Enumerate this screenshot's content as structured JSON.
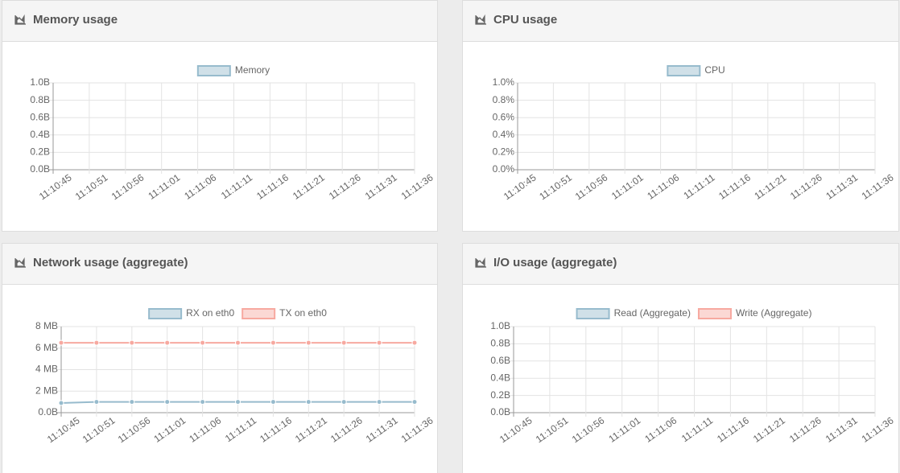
{
  "chart_data": [
    {
      "type": "line",
      "title": "Memory usage",
      "categories": [
        "11:10:45",
        "11:10:51",
        "11:10:56",
        "11:11:01",
        "11:11:06",
        "11:11:11",
        "11:11:16",
        "11:11:21",
        "11:11:26",
        "11:11:31",
        "11:11:36"
      ],
      "series": [
        {
          "name": "Memory",
          "color": "#97bbcd",
          "values": [
            null,
            null,
            null,
            null,
            null,
            null,
            null,
            null,
            null,
            null,
            null
          ]
        }
      ],
      "ylim": [
        0,
        1
      ],
      "yticks": [
        {
          "value": 0,
          "label": "0.0B"
        },
        {
          "value": 0.2,
          "label": "0.2B"
        },
        {
          "value": 0.4,
          "label": "0.4B"
        },
        {
          "value": 0.6,
          "label": "0.6B"
        },
        {
          "value": 0.8,
          "label": "0.8B"
        },
        {
          "value": 1,
          "label": "1.0B"
        }
      ],
      "grid": true
    },
    {
      "type": "line",
      "title": "CPU usage",
      "categories": [
        "11:10:45",
        "11:10:51",
        "11:10:56",
        "11:11:01",
        "11:11:06",
        "11:11:11",
        "11:11:16",
        "11:11:21",
        "11:11:26",
        "11:11:31",
        "11:11:36"
      ],
      "series": [
        {
          "name": "CPU",
          "color": "#97bbcd",
          "values": [
            null,
            null,
            null,
            null,
            null,
            null,
            null,
            null,
            null,
            null,
            null
          ]
        }
      ],
      "ylim": [
        0,
        1
      ],
      "yticks": [
        {
          "value": 0,
          "label": "0.0%"
        },
        {
          "value": 0.2,
          "label": "0.2%"
        },
        {
          "value": 0.4,
          "label": "0.4%"
        },
        {
          "value": 0.6,
          "label": "0.6%"
        },
        {
          "value": 0.8,
          "label": "0.8%"
        },
        {
          "value": 1,
          "label": "1.0%"
        }
      ],
      "grid": true
    },
    {
      "type": "line",
      "title": "Network usage (aggregate)",
      "categories": [
        "11:10:45",
        "11:10:51",
        "11:10:56",
        "11:11:01",
        "11:11:06",
        "11:11:11",
        "11:11:16",
        "11:11:21",
        "11:11:26",
        "11:11:31",
        "11:11:36"
      ],
      "series": [
        {
          "name": "RX on eth0",
          "color": "#97bbcd",
          "values": [
            0.9,
            1,
            1,
            1,
            1,
            1,
            1,
            1,
            1,
            1,
            1
          ]
        },
        {
          "name": "TX on eth0",
          "color": "#f7a9a0",
          "values": [
            6.5,
            6.5,
            6.5,
            6.5,
            6.5,
            6.5,
            6.5,
            6.5,
            6.5,
            6.5,
            6.5
          ]
        }
      ],
      "ylim": [
        0,
        8
      ],
      "yticks": [
        {
          "value": 0,
          "label": "0.0B"
        },
        {
          "value": 2,
          "label": "2 MB"
        },
        {
          "value": 4,
          "label": "4 MB"
        },
        {
          "value": 6,
          "label": "6 MB"
        },
        {
          "value": 8,
          "label": "8 MB"
        }
      ],
      "grid": true
    },
    {
      "type": "line",
      "title": "I/O usage (aggregate)",
      "categories": [
        "11:10:45",
        "11:10:51",
        "11:10:56",
        "11:11:01",
        "11:11:06",
        "11:11:11",
        "11:11:16",
        "11:11:21",
        "11:11:26",
        "11:11:31",
        "11:11:36"
      ],
      "series": [
        {
          "name": "Read (Aggregate)",
          "color": "#97bbcd",
          "values": [
            null,
            null,
            null,
            null,
            null,
            null,
            null,
            null,
            null,
            null,
            null
          ]
        },
        {
          "name": "Write (Aggregate)",
          "color": "#f7a9a0",
          "values": [
            null,
            null,
            null,
            null,
            null,
            null,
            null,
            null,
            null,
            null,
            null
          ]
        }
      ],
      "ylim": [
        0,
        1
      ],
      "yticks": [
        {
          "value": 0,
          "label": "0.0B"
        },
        {
          "value": 0.2,
          "label": "0.2B"
        },
        {
          "value": 0.4,
          "label": "0.4B"
        },
        {
          "value": 0.6,
          "label": "0.6B"
        },
        {
          "value": 0.8,
          "label": "0.8B"
        },
        {
          "value": 1,
          "label": "1.0B"
        }
      ],
      "grid": true
    }
  ]
}
